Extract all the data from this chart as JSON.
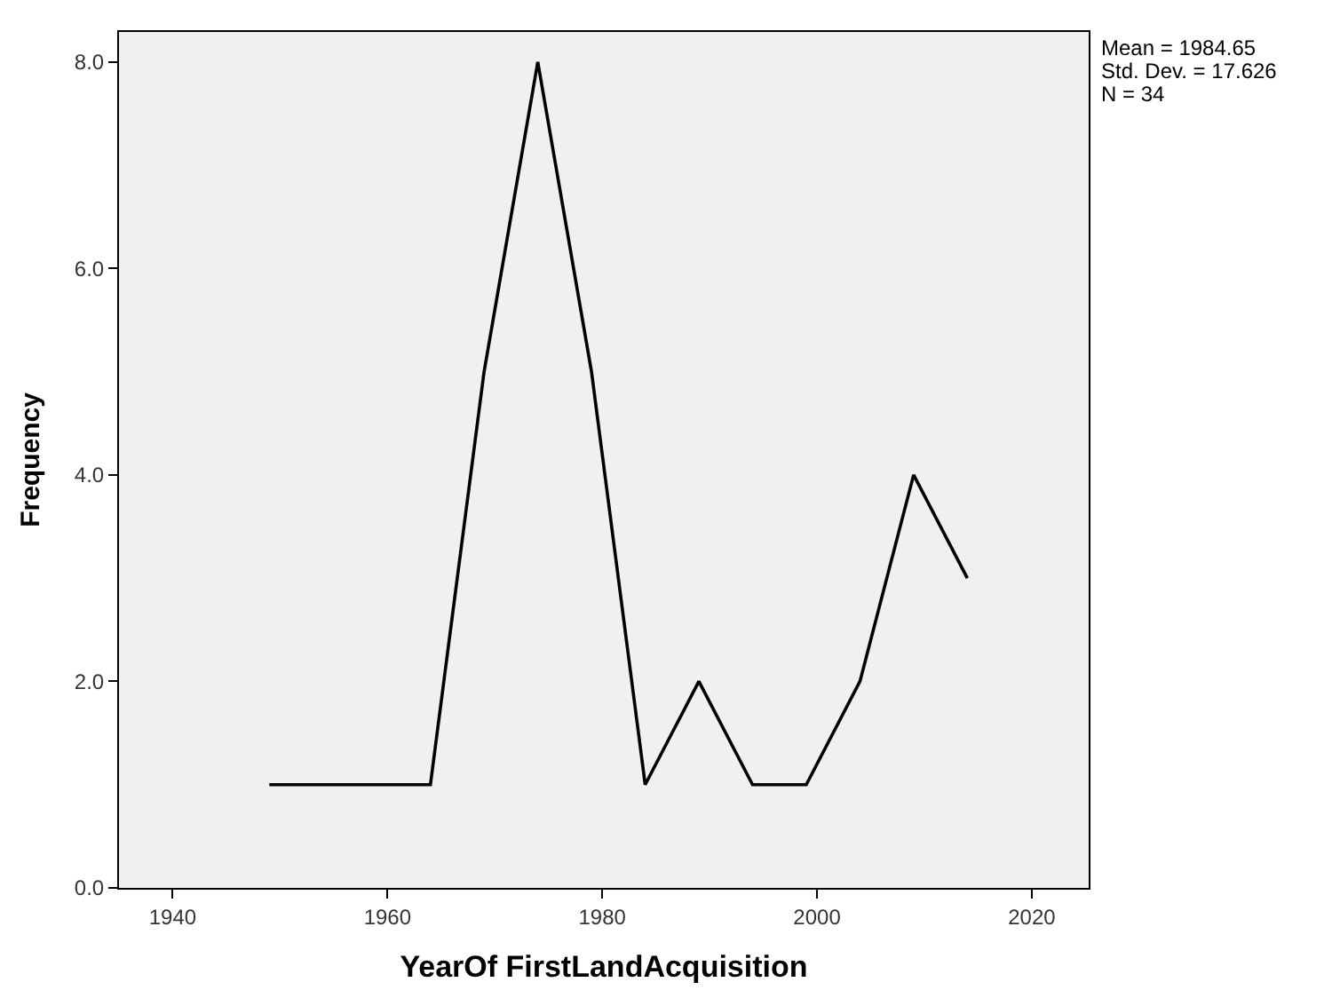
{
  "chart_data": {
    "type": "line",
    "xlabel": "YearOf FirstLandAcquisition",
    "ylabel": "Frequency",
    "x": [
      1949,
      1964,
      1969,
      1974,
      1979,
      1984,
      1989,
      1994,
      1999,
      2004,
      2009,
      2014
    ],
    "series": [
      {
        "color": "#000000",
        "values": [
          1,
          1,
          5,
          8,
          5,
          1,
          2,
          1,
          1,
          2,
          4,
          3
        ]
      }
    ],
    "xlim": [
      1935,
      2025.3
    ],
    "xticks": [
      1940,
      1960,
      1980,
      2000,
      2020
    ],
    "ylim": [
      0,
      8.29
    ],
    "yticks": [
      {
        "value": 0,
        "label": "0.0"
      },
      {
        "value": 2,
        "label": "2.0"
      },
      {
        "value": 4,
        "label": "4.0"
      },
      {
        "value": 6,
        "label": "6.0"
      },
      {
        "value": 8,
        "label": "8.0"
      }
    ],
    "grid": false,
    "marker": "none",
    "line_style": "solid",
    "annotations": [
      "Mean = 1984.65",
      "Std. Dev. = 17.626",
      "N = 34"
    ]
  }
}
